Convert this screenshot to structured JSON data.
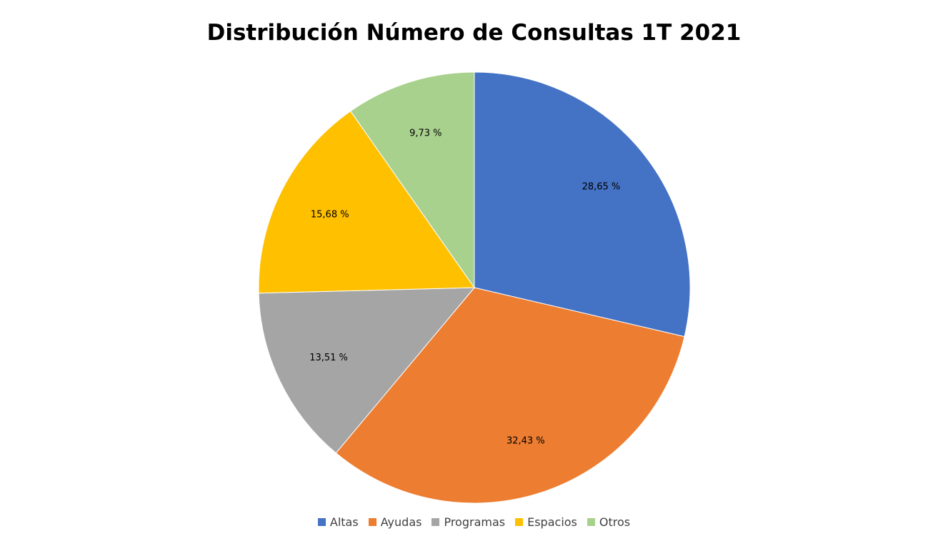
{
  "chart_data": {
    "type": "pie",
    "title": "Distribución Número de Consultas 1T 2021",
    "categories": [
      "Altas",
      "Ayudas",
      "Programas",
      "Espacios",
      "Otros"
    ],
    "values": [
      28.65,
      32.43,
      13.51,
      15.68,
      9.73
    ],
    "labels": [
      "28,65 %",
      "32,43 %",
      "13,51 %",
      "15,68 %",
      "9,73 %"
    ],
    "colors": [
      "#4472C4",
      "#ED7D31",
      "#A5A5A5",
      "#FFC000",
      "#A9D18E"
    ],
    "start_angle": "12 o'clock",
    "direction": "clockwise",
    "legend_position": "bottom"
  }
}
